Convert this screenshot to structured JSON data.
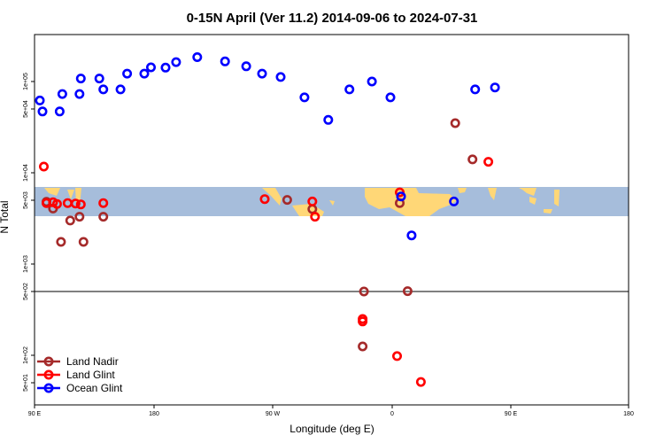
{
  "chart_data": {
    "type": "scatter",
    "title": "0-15N April (Ver 11.2)   2014-09-06 to 2024-07-31",
    "xlabel": "Longitude (deg E)",
    "ylabel": "N Total",
    "y_scale": "log",
    "x_ticks": [
      "90 E",
      "180",
      "90 W",
      "0",
      "90 E",
      "180"
    ],
    "y_ticks": [
      "5e+01",
      "1e+02",
      "5e+02",
      "1e+03",
      "5e+03",
      "1e+04",
      "5e+04",
      "1e+05"
    ],
    "grid": false,
    "legend_position": "bottom-left",
    "colors": {
      "land_nadir": "#a52a2a",
      "land_glint": "#ff0000",
      "ocean_glint": "#0000ff",
      "map_ocean": "#a6bddb",
      "map_land": "#ffd777"
    },
    "series": [
      {
        "name": "Land Nadir",
        "points": [
          {
            "x": 99,
            "y": 4800
          },
          {
            "x": 110,
            "y": 1750
          },
          {
            "x": 124,
            "y": 3300
          },
          {
            "x": -79,
            "y": 5050
          },
          {
            "x": -60,
            "y": 4000
          },
          {
            "x": -21,
            "y": 500
          },
          {
            "x": -22,
            "y": 125
          },
          {
            "x": 6,
            "y": 4650
          },
          {
            "x": 12,
            "y": 505
          },
          {
            "x": 48,
            "y": 35000
          },
          {
            "x": 61,
            "y": 14000
          },
          {
            "x": 104,
            "y": 4050
          },
          {
            "x": 117,
            "y": 3000
          },
          {
            "x": 127,
            "y": 1750
          },
          {
            "x": 142,
            "y": 3300
          }
        ]
      },
      {
        "name": "Land Glint",
        "points": [
          {
            "x": 99,
            "y": 4650
          },
          {
            "x": 107,
            "y": 4550
          },
          {
            "x": 121,
            "y": 4600
          },
          {
            "x": -96,
            "y": 5150
          },
          {
            "x": -60,
            "y": 4850
          },
          {
            "x": -58,
            "y": 3300
          },
          {
            "x": -22,
            "y": 235
          },
          {
            "x": -22,
            "y": 250
          },
          {
            "x": 6,
            "y": 6100
          },
          {
            "x": 4,
            "y": 98
          },
          {
            "x": 22,
            "y": 51
          },
          {
            "x": 73,
            "y": 13200
          },
          {
            "x": 97,
            "y": 11700
          },
          {
            "x": 104,
            "y": 4750
          },
          {
            "x": 115,
            "y": 4650
          },
          {
            "x": 125,
            "y": 4500
          },
          {
            "x": 142,
            "y": 4650
          }
        ]
      },
      {
        "name": "Ocean Glint",
        "points": [
          {
            "x": 96,
            "y": 47000
          },
          {
            "x": 111,
            "y": 73000
          },
          {
            "x": 125,
            "y": 108000
          },
          {
            "x": 142,
            "y": 82000
          },
          {
            "x": 160,
            "y": 122000
          },
          {
            "x": 178,
            "y": 143000
          },
          {
            "x": -163,
            "y": 163000
          },
          {
            "x": -147,
            "y": 185000
          },
          {
            "x": -126,
            "y": 166000
          },
          {
            "x": -110,
            "y": 147000
          },
          {
            "x": -98,
            "y": 122000
          },
          {
            "x": -84,
            "y": 112000
          },
          {
            "x": -66,
            "y": 67000
          },
          {
            "x": -48,
            "y": 38000
          },
          {
            "x": -32,
            "y": 82000
          },
          {
            "x": -15,
            "y": 100000
          },
          {
            "x": -1,
            "y": 67000
          },
          {
            "x": 7,
            "y": 5500
          },
          {
            "x": 15,
            "y": 2060
          },
          {
            "x": 47,
            "y": 4850
          },
          {
            "x": 63,
            "y": 82000
          },
          {
            "x": 78,
            "y": 86000
          },
          {
            "x": 94,
            "y": 62000
          },
          {
            "x": 109,
            "y": 47000
          },
          {
            "x": 124,
            "y": 73000
          },
          {
            "x": 139,
            "y": 108000
          },
          {
            "x": 155,
            "y": 82000
          },
          {
            "x": 173,
            "y": 122000
          },
          {
            "x": 189,
            "y": 142000
          }
        ]
      }
    ]
  }
}
